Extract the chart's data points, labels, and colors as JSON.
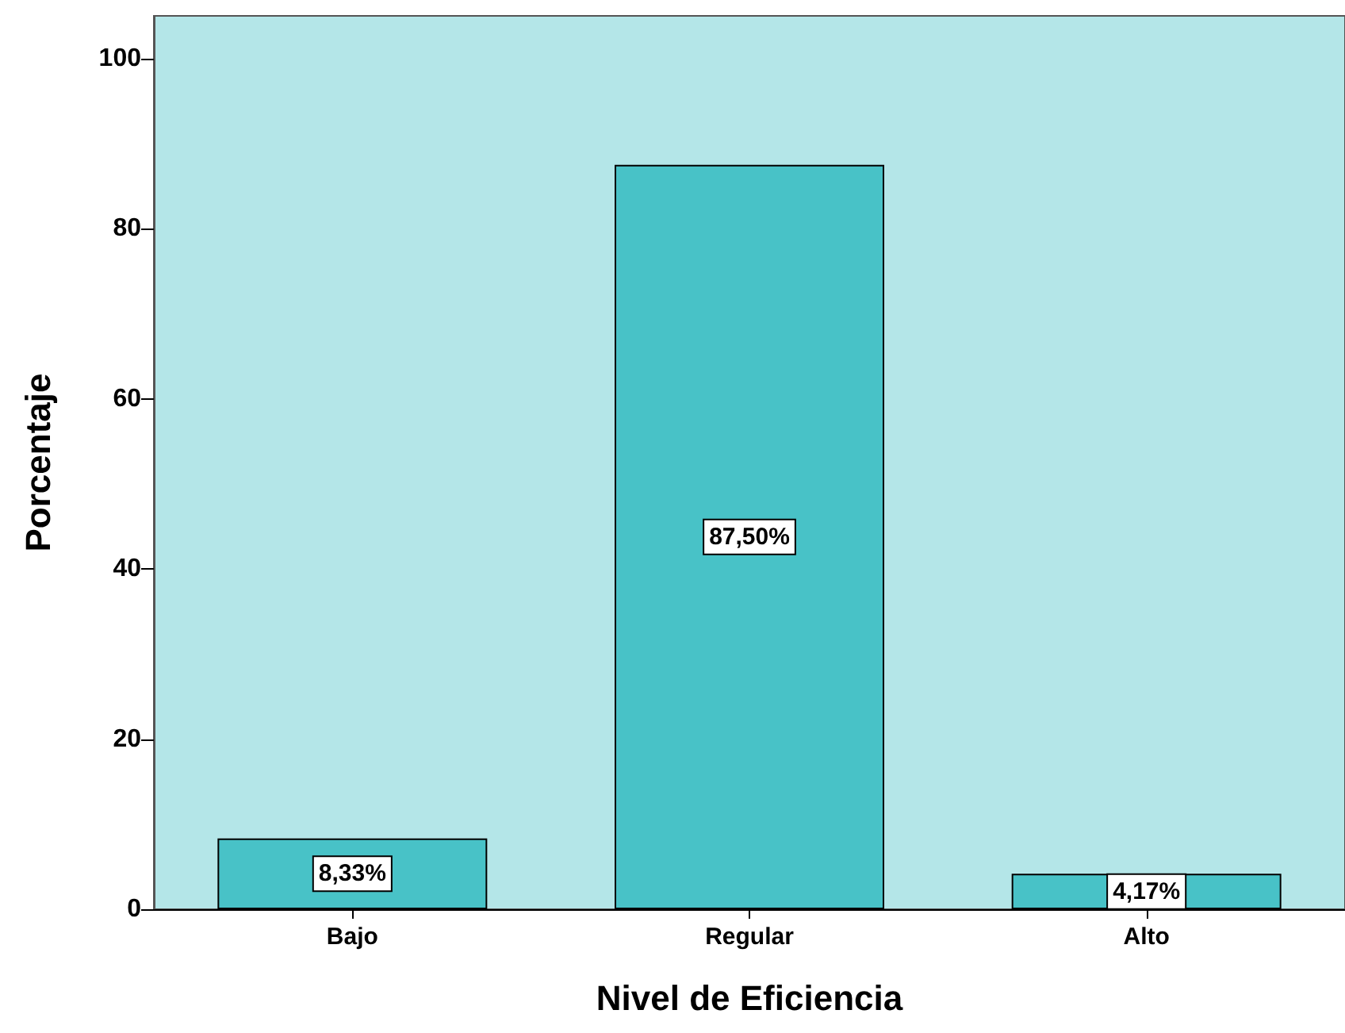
{
  "chart_data": {
    "type": "bar",
    "xlabel": "Nivel de Eficiencia",
    "ylabel": "Porcentaje",
    "categories": [
      "Bajo",
      "Regular",
      "Alto"
    ],
    "values": [
      8.33,
      87.5,
      4.17
    ],
    "color": "#48c2c7",
    "value_labels": [
      "8,33%",
      "87,50%",
      "4,17%"
    ],
    "ylim": [
      0,
      105
    ],
    "yticks": [
      0,
      20,
      40,
      60,
      80,
      100
    ],
    "grid": false
  }
}
